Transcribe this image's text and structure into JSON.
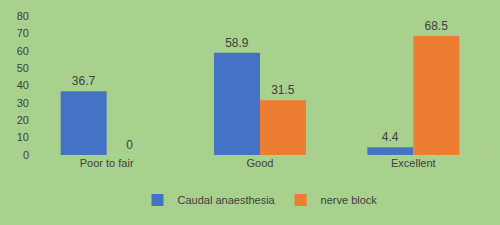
{
  "chart_data": {
    "type": "bar",
    "categories": [
      "Poor to fair",
      "Good",
      "Excellent"
    ],
    "series": [
      {
        "name": "Caudal anaesthesia",
        "color": "#4472c4",
        "values": [
          36.7,
          58.9,
          4.4
        ]
      },
      {
        "name": "nerve block",
        "color": "#ed7d31",
        "values": [
          0,
          31.5,
          68.5
        ]
      }
    ],
    "ylim": [
      0,
      80
    ],
    "yticks": [
      0,
      10,
      20,
      30,
      40,
      50,
      60,
      70,
      80
    ],
    "grid": false,
    "legend": "bottom",
    "data_labels": true
  }
}
